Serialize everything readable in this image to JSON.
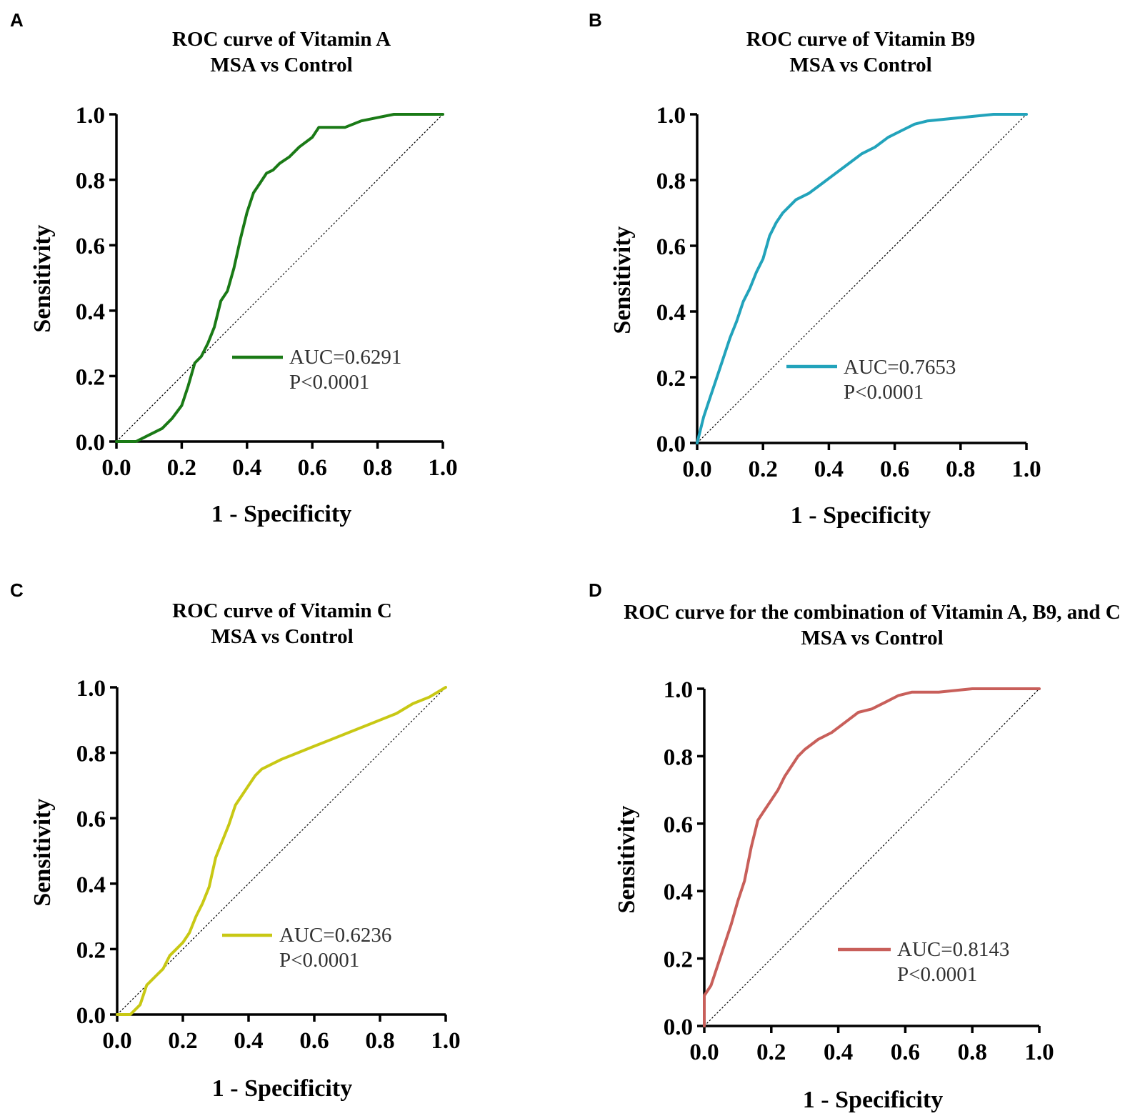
{
  "chart_data": [
    {
      "panel": "A",
      "type": "line",
      "title": "ROC curve of Vitamin A",
      "subtitle": "MSA vs Control",
      "xlabel": "1 - Specificity",
      "ylabel": "Sensitivity",
      "xlim": [
        0,
        1
      ],
      "ylim": [
        0,
        1
      ],
      "xticks": [
        "0.0",
        "0.2",
        "0.4",
        "0.6",
        "0.8",
        "1.0"
      ],
      "yticks": [
        "0.0",
        "0.2",
        "0.4",
        "0.6",
        "0.8",
        "1.0"
      ],
      "color": "#1a7a16",
      "legend": {
        "auc": "AUC=0.6291",
        "p": "P<0.0001"
      },
      "series": [
        {
          "name": "Vitamin A",
          "x": [
            0,
            0.06,
            0.1,
            0.14,
            0.17,
            0.2,
            0.22,
            0.24,
            0.26,
            0.28,
            0.3,
            0.32,
            0.34,
            0.36,
            0.38,
            0.4,
            0.42,
            0.44,
            0.46,
            0.48,
            0.5,
            0.53,
            0.56,
            0.6,
            0.62,
            0.65,
            0.7,
            0.75,
            0.8,
            0.85,
            0.9,
            1.0
          ],
          "y": [
            0,
            0.0,
            0.02,
            0.04,
            0.07,
            0.11,
            0.17,
            0.24,
            0.26,
            0.3,
            0.35,
            0.43,
            0.46,
            0.53,
            0.62,
            0.7,
            0.76,
            0.79,
            0.82,
            0.83,
            0.85,
            0.87,
            0.9,
            0.93,
            0.96,
            0.96,
            0.96,
            0.98,
            0.99,
            1.0,
            1.0,
            1.0
          ]
        }
      ]
    },
    {
      "panel": "B",
      "type": "line",
      "title": "ROC curve of Vitamin B9",
      "subtitle": "MSA vs Control",
      "xlabel": "1 - Specificity",
      "ylabel": "Sensitivity",
      "xlim": [
        0,
        1
      ],
      "ylim": [
        0,
        1
      ],
      "xticks": [
        "0.0",
        "0.2",
        "0.4",
        "0.6",
        "0.8",
        "1.0"
      ],
      "yticks": [
        "0.0",
        "0.2",
        "0.4",
        "0.6",
        "0.8",
        "1.0"
      ],
      "color": "#22a3bb",
      "legend": {
        "auc": "AUC=0.7653",
        "p": "P<0.0001"
      },
      "series": [
        {
          "name": "Vitamin B9",
          "x": [
            0,
            0.02,
            0.04,
            0.06,
            0.08,
            0.1,
            0.12,
            0.14,
            0.16,
            0.18,
            0.2,
            0.22,
            0.24,
            0.26,
            0.28,
            0.3,
            0.34,
            0.38,
            0.42,
            0.46,
            0.5,
            0.54,
            0.58,
            0.62,
            0.66,
            0.7,
            0.8,
            0.9,
            1.0
          ],
          "y": [
            0,
            0.08,
            0.14,
            0.2,
            0.26,
            0.32,
            0.37,
            0.43,
            0.47,
            0.52,
            0.56,
            0.63,
            0.67,
            0.7,
            0.72,
            0.74,
            0.76,
            0.79,
            0.82,
            0.85,
            0.88,
            0.9,
            0.93,
            0.95,
            0.97,
            0.98,
            0.99,
            1.0,
            1.0
          ]
        }
      ]
    },
    {
      "panel": "C",
      "type": "line",
      "title": "ROC curve of Vitamin C",
      "subtitle": "MSA vs Control",
      "xlabel": "1 - Specificity",
      "ylabel": "Sensitivity",
      "xlim": [
        0,
        1
      ],
      "ylim": [
        0,
        1
      ],
      "xticks": [
        "0.0",
        "0.2",
        "0.4",
        "0.6",
        "0.8",
        "1.0"
      ],
      "yticks": [
        "0.0",
        "0.2",
        "0.4",
        "0.6",
        "0.8",
        "1.0"
      ],
      "color": "#c8c814",
      "legend": {
        "auc": "AUC=0.6236",
        "p": "P<0.0001"
      },
      "series": [
        {
          "name": "Vitamin C",
          "x": [
            0,
            0.04,
            0.07,
            0.09,
            0.12,
            0.14,
            0.16,
            0.18,
            0.2,
            0.22,
            0.24,
            0.26,
            0.28,
            0.3,
            0.32,
            0.34,
            0.36,
            0.38,
            0.4,
            0.42,
            0.44,
            0.46,
            0.5,
            0.55,
            0.6,
            0.65,
            0.7,
            0.75,
            0.8,
            0.85,
            0.9,
            0.95,
            1.0
          ],
          "y": [
            0,
            0.0,
            0.03,
            0.09,
            0.12,
            0.14,
            0.18,
            0.2,
            0.22,
            0.25,
            0.3,
            0.34,
            0.39,
            0.48,
            0.53,
            0.58,
            0.64,
            0.67,
            0.7,
            0.73,
            0.75,
            0.76,
            0.78,
            0.8,
            0.82,
            0.84,
            0.86,
            0.88,
            0.9,
            0.92,
            0.95,
            0.97,
            1.0
          ]
        }
      ]
    },
    {
      "panel": "D",
      "type": "line",
      "title": "ROC curve for the combination of Vitamin A, B9, and C",
      "subtitle": "MSA vs Control",
      "xlabel": "1 - Specificity",
      "ylabel": "Sensitivity",
      "xlim": [
        0,
        1
      ],
      "ylim": [
        0,
        1
      ],
      "xticks": [
        "0.0",
        "0.2",
        "0.4",
        "0.6",
        "0.8",
        "1.0"
      ],
      "yticks": [
        "0.0",
        "0.2",
        "0.4",
        "0.6",
        "0.8",
        "1.0"
      ],
      "color": "#c85f5a",
      "legend": {
        "auc": "AUC=0.8143",
        "p": "P<0.0001"
      },
      "series": [
        {
          "name": "Combination",
          "x": [
            0,
            0.0,
            0.02,
            0.04,
            0.06,
            0.08,
            0.1,
            0.12,
            0.14,
            0.16,
            0.18,
            0.2,
            0.22,
            0.24,
            0.26,
            0.28,
            0.3,
            0.34,
            0.38,
            0.42,
            0.46,
            0.5,
            0.54,
            0.58,
            0.62,
            0.7,
            0.8,
            0.9,
            1.0
          ],
          "y": [
            0,
            0.09,
            0.12,
            0.18,
            0.24,
            0.3,
            0.37,
            0.43,
            0.53,
            0.61,
            0.64,
            0.67,
            0.7,
            0.74,
            0.77,
            0.8,
            0.82,
            0.85,
            0.87,
            0.9,
            0.93,
            0.94,
            0.96,
            0.98,
            0.99,
            0.99,
            1.0,
            1.0,
            1.0
          ]
        }
      ]
    }
  ]
}
